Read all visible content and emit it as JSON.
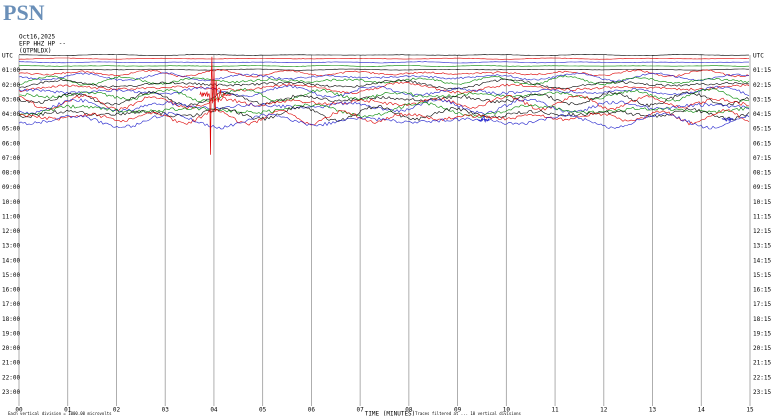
{
  "header": {
    "logo": "PSN",
    "date": "Oct16,2025",
    "channel": "EFP HHZ HP --",
    "station": "(QTPNLDX)"
  },
  "left_labels": [
    "UTC",
    "01:00",
    "02:00",
    "03:00",
    "04:00",
    "05:00",
    "06:00",
    "07:00",
    "08:00",
    "09:00",
    "10:00",
    "11:00",
    "12:00",
    "13:00",
    "14:00",
    "15:00",
    "16:00",
    "17:00",
    "18:00",
    "19:00",
    "20:00",
    "21:00",
    "22:00",
    "23:00"
  ],
  "right_labels": [
    "UTC",
    "01:15",
    "02:15",
    "03:15",
    "04:15",
    "05:15",
    "06:15",
    "07:15",
    "08:15",
    "09:15",
    "10:15",
    "11:15",
    "12:15",
    "13:15",
    "14:15",
    "15:15",
    "16:15",
    "17:15",
    "18:15",
    "19:15",
    "20:15",
    "21:15",
    "22:15",
    "23:15"
  ],
  "x_ticks": [
    "00",
    "01",
    "02",
    "03",
    "04",
    "05",
    "06",
    "07",
    "08",
    "09",
    "10",
    "11",
    "12",
    "13",
    "14",
    "15"
  ],
  "x_label": "TIME (MINUTES)",
  "footer": {
    "left": "Each vertical division = 1000.00 microvolts",
    "right": "Traces filtered at ... 10 vertical divisions"
  }
}
